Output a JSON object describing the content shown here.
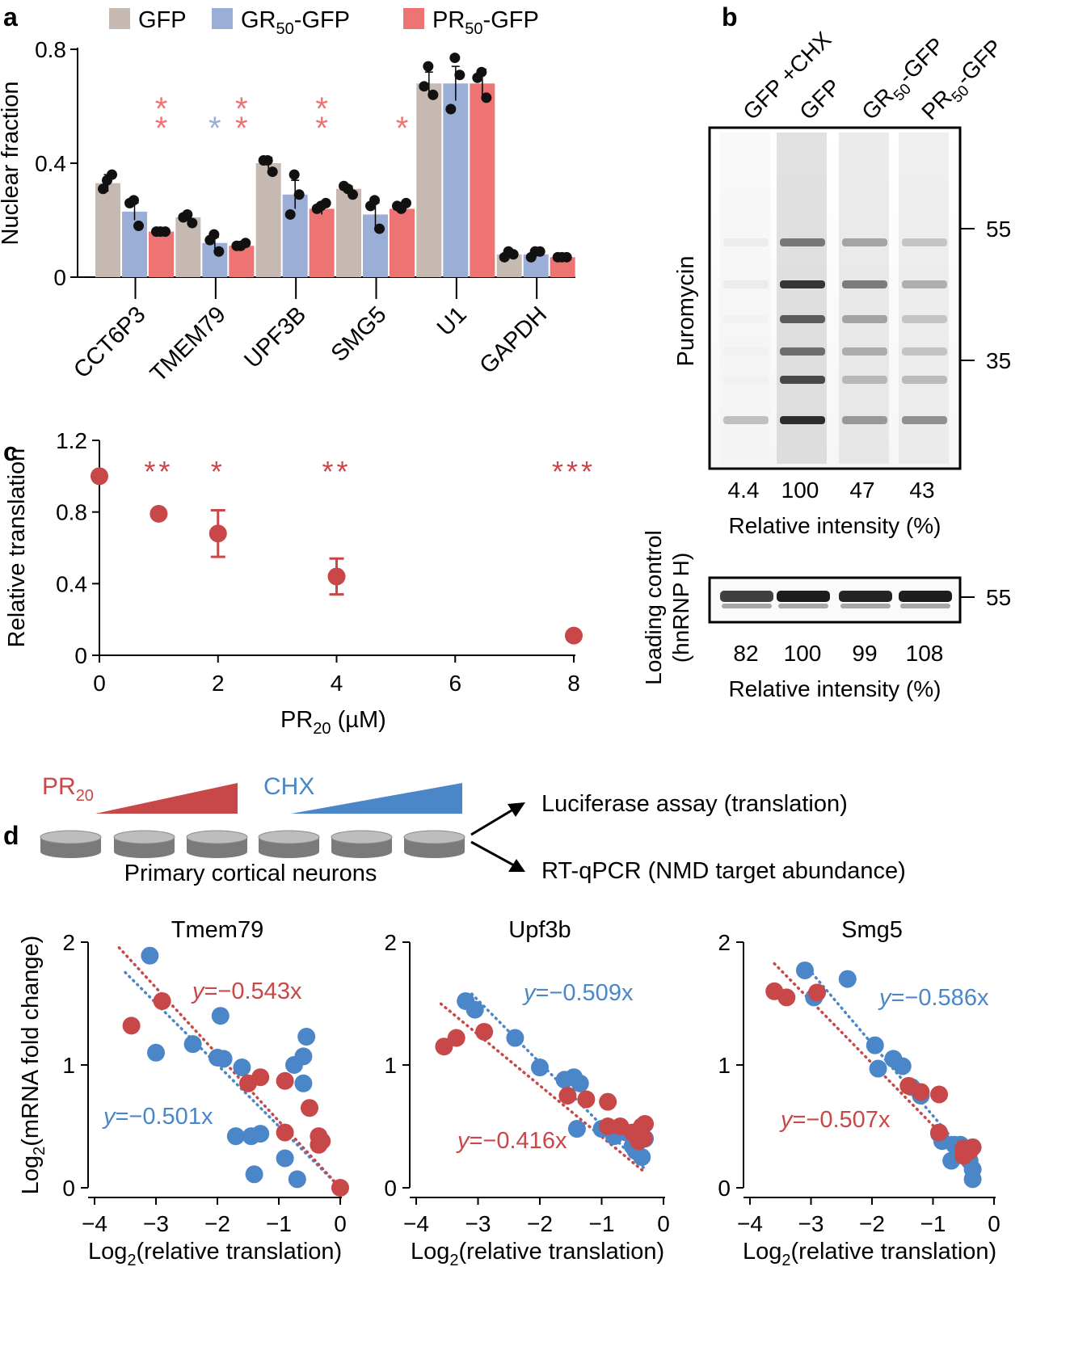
{
  "panel_labels": {
    "a": "a",
    "b": "b",
    "c": "c",
    "d": "d"
  },
  "colors": {
    "gfp": "#c5b9b2",
    "gr": "#9baed6",
    "pr": "#ee7373",
    "pr_dark": "#c84748",
    "cx_blue": "#4a86c8",
    "dot": "#111111"
  },
  "chart_data": [
    {
      "id": "a",
      "type": "bar",
      "ylabel": "Nuclear fraction",
      "ylim": [
        0,
        0.8
      ],
      "yticks": [
        "0",
        "0.4",
        "0.8"
      ],
      "categories": [
        "CCT6P3",
        "TMEM79",
        "UPF3B",
        "SMG5",
        "U1",
        "GAPDH"
      ],
      "legend": [
        {
          "name": "GFP",
          "sub": "",
          "suffix": ""
        },
        {
          "name": "GR",
          "sub": "50",
          "suffix": "-GFP"
        },
        {
          "name": "PR",
          "sub": "50",
          "suffix": "-GFP"
        }
      ],
      "series": [
        {
          "name": "GFP",
          "values": [
            0.33,
            0.21,
            0.4,
            0.31,
            0.68,
            0.08
          ],
          "points": [
            [
              0.31,
              0.36,
              0.34
            ],
            [
              0.21,
              0.19,
              0.22
            ],
            [
              0.41,
              0.37,
              0.41
            ],
            [
              0.32,
              0.29,
              0.31
            ],
            [
              0.67,
              0.64,
              0.74
            ],
            [
              0.07,
              0.08,
              0.09
            ]
          ],
          "err": [
            0.03,
            0.01,
            0.02,
            0.01,
            0.04,
            0.005
          ]
        },
        {
          "name": "GR50-GFP",
          "values": [
            0.23,
            0.12,
            0.29,
            0.22,
            0.68,
            0.08
          ],
          "points": [
            [
              0.26,
              0.18,
              0.27
            ],
            [
              0.13,
              0.09,
              0.15
            ],
            [
              0.22,
              0.29,
              0.36
            ],
            [
              0.25,
              0.17,
              0.27
            ],
            [
              0.59,
              0.71,
              0.77
            ],
            [
              0.07,
              0.09,
              0.09
            ]
          ],
          "err": [
            0.03,
            0.02,
            0.05,
            0.04,
            0.06,
            0.01
          ]
        },
        {
          "name": "PR50-GFP",
          "values": [
            0.16,
            0.11,
            0.24,
            0.24,
            0.68,
            0.07
          ],
          "points": [
            [
              0.16,
              0.16,
              0.16
            ],
            [
              0.11,
              0.12,
              0.11
            ],
            [
              0.24,
              0.26,
              0.25
            ],
            [
              0.25,
              0.26,
              0.24
            ],
            [
              0.7,
              0.63,
              0.72
            ],
            [
              0.07,
              0.07,
              0.07
            ]
          ],
          "err": [
            0.005,
            0.005,
            0.02,
            0.01,
            0.05,
            0.005
          ]
        }
      ],
      "significance": [
        {
          "category": 0,
          "series": 2,
          "text": "**"
        },
        {
          "category": 1,
          "series": 1,
          "text": "*"
        },
        {
          "category": 1,
          "series": 2,
          "text": "**"
        },
        {
          "category": 2,
          "series": 2,
          "text": "**"
        },
        {
          "category": 3,
          "series": 2,
          "text": "*"
        }
      ]
    },
    {
      "id": "c",
      "type": "scatter",
      "ylabel": "Relative translation",
      "xlabel_main": "PR",
      "xlabel_sub": "20",
      "xlabel_tail": " (µM)",
      "xlim": [
        0,
        8
      ],
      "ylim": [
        0,
        1.2
      ],
      "xticks": [
        "0",
        "2",
        "4",
        "6",
        "8"
      ],
      "yticks": [
        "0",
        "0.4",
        "0.8",
        "1.2"
      ],
      "points": [
        {
          "x": 0,
          "y": 1.0,
          "err": 0
        },
        {
          "x": 1,
          "y": 0.79,
          "err": 0
        },
        {
          "x": 2,
          "y": 0.68,
          "err": 0.13
        },
        {
          "x": 4,
          "y": 0.44,
          "err": 0.1
        },
        {
          "x": 8,
          "y": 0.11,
          "err": 0
        }
      ],
      "significance": [
        {
          "x": 1,
          "text": "**"
        },
        {
          "x": 2,
          "text": "*"
        },
        {
          "x": 4,
          "text": "**"
        },
        {
          "x": 8,
          "text": "***"
        }
      ]
    },
    {
      "id": "d1",
      "type": "scatter",
      "title": "Tmem79",
      "xlim": [
        -4,
        0
      ],
      "ylim": [
        0,
        2
      ],
      "xticks": [
        "−4",
        "−3",
        "−2",
        "−1",
        "0"
      ],
      "yticks": [
        "0",
        "1",
        "2"
      ],
      "xlabel_main": "Log",
      "xlabel_sub": "2",
      "xlabel_tail": "(relative translation)",
      "ylabel_main": "Log",
      "ylabel_sub": "2",
      "ylabel_tail": "(mRNA fold change)",
      "series": [
        {
          "name": "CHX",
          "slope": -0.501,
          "fit_x": [
            -3.5,
            0
          ],
          "equation_var": "y",
          "equation_rest": "=−0.501x",
          "points": [
            [
              -3.1,
              1.89
            ],
            [
              -3.0,
              1.1
            ],
            [
              -2.4,
              1.17
            ],
            [
              -2.0,
              1.06
            ],
            [
              -1.95,
              1.4
            ],
            [
              -1.7,
              0.42
            ],
            [
              -1.45,
              0.42
            ],
            [
              -1.4,
              0.11
            ],
            [
              -0.9,
              0.24
            ],
            [
              -0.75,
              1.0
            ],
            [
              -0.7,
              0.07
            ],
            [
              -0.6,
              1.07
            ],
            [
              -0.55,
              1.23
            ],
            [
              -0.6,
              0.85
            ],
            [
              -1.6,
              0.98
            ],
            [
              -1.9,
              1.05
            ],
            [
              -1.3,
              0.44
            ]
          ]
        },
        {
          "name": "PR20",
          "slope": -0.543,
          "fit_x": [
            -3.6,
            0
          ],
          "equation_var": "y",
          "equation_rest": "=−0.543x",
          "points": [
            [
              -3.4,
              1.32
            ],
            [
              -2.9,
              1.52
            ],
            [
              -1.5,
              0.85
            ],
            [
              -1.3,
              0.9
            ],
            [
              -0.9,
              0.87
            ],
            [
              -0.9,
              0.45
            ],
            [
              -0.5,
              0.65
            ],
            [
              -0.35,
              0.42
            ],
            [
              -0.35,
              0.35
            ],
            [
              -0.3,
              0.38
            ],
            [
              0,
              0
            ]
          ]
        }
      ]
    },
    {
      "id": "d2",
      "type": "scatter",
      "title": "Upf3b",
      "xlim": [
        -4,
        0
      ],
      "ylim": [
        0,
        2
      ],
      "xticks": [
        "−4",
        "−3",
        "−2",
        "−1",
        "0"
      ],
      "yticks": [
        "0",
        "1",
        "2"
      ],
      "xlabel_main": "Log",
      "xlabel_sub": "2",
      "xlabel_tail": "(relative translation)",
      "series": [
        {
          "name": "CHX",
          "slope": -0.509,
          "fit_x": [
            -3.1,
            -0.3
          ],
          "equation_var": "y",
          "equation_rest": "=−0.509x",
          "points": [
            [
              -3.2,
              1.52
            ],
            [
              -3.05,
              1.45
            ],
            [
              -2.4,
              1.22
            ],
            [
              -2.0,
              0.98
            ],
            [
              -1.6,
              0.88
            ],
            [
              -1.45,
              0.9
            ],
            [
              -1.35,
              0.85
            ],
            [
              -1.4,
              0.48
            ],
            [
              -1.0,
              0.48
            ],
            [
              -0.8,
              0.42
            ],
            [
              -0.6,
              0.45
            ],
            [
              -0.5,
              0.34
            ],
            [
              -0.45,
              0.3
            ],
            [
              -0.35,
              0.25
            ],
            [
              -0.3,
              0.4
            ]
          ]
        },
        {
          "name": "PR20",
          "slope": -0.416,
          "fit_x": [
            -3.6,
            -0.3
          ],
          "equation_var": "y",
          "equation_rest": "=−0.416x",
          "points": [
            [
              -3.55,
              1.15
            ],
            [
              -3.35,
              1.22
            ],
            [
              -2.9,
              1.27
            ],
            [
              -1.55,
              0.75
            ],
            [
              -1.25,
              0.72
            ],
            [
              -0.9,
              0.7
            ],
            [
              -0.9,
              0.5
            ],
            [
              -0.7,
              0.5
            ],
            [
              -0.5,
              0.45
            ],
            [
              -0.35,
              0.5
            ],
            [
              -0.3,
              0.52
            ],
            [
              -0.32,
              0.4
            ],
            [
              -0.4,
              0.38
            ]
          ]
        }
      ]
    },
    {
      "id": "d3",
      "type": "scatter",
      "title": "Smg5",
      "xlim": [
        -4,
        0
      ],
      "ylim": [
        0,
        2
      ],
      "xticks": [
        "−4",
        "−3",
        "−2",
        "−1",
        "0"
      ],
      "yticks": [
        "0",
        "1",
        "2"
      ],
      "xlabel_main": "Log",
      "xlabel_sub": "2",
      "xlabel_tail": "(relative translation)",
      "series": [
        {
          "name": "CHX",
          "slope": -0.586,
          "fit_x": [
            -3.1,
            -0.3
          ],
          "equation_var": "y",
          "equation_rest": "=−0.586x",
          "points": [
            [
              -3.1,
              1.77
            ],
            [
              -2.95,
              1.55
            ],
            [
              -2.4,
              1.7
            ],
            [
              -1.95,
              1.16
            ],
            [
              -1.9,
              0.97
            ],
            [
              -1.65,
              1.05
            ],
            [
              -1.5,
              0.99
            ],
            [
              -1.35,
              0.82
            ],
            [
              -1.2,
              0.75
            ],
            [
              -0.9,
              0.44
            ],
            [
              -0.85,
              0.38
            ],
            [
              -0.65,
              0.35
            ],
            [
              -0.55,
              0.35
            ],
            [
              -0.45,
              0.3
            ],
            [
              -0.4,
              0.22
            ],
            [
              -0.35,
              0.15
            ],
            [
              -0.35,
              0.07
            ],
            [
              -0.7,
              0.22
            ]
          ]
        },
        {
          "name": "PR20",
          "slope": -0.507,
          "fit_x": [
            -3.6,
            -0.3
          ],
          "equation_var": "y",
          "equation_rest": "=−0.507x",
          "points": [
            [
              -3.6,
              1.6
            ],
            [
              -3.4,
              1.55
            ],
            [
              -2.9,
              1.59
            ],
            [
              -1.4,
              0.83
            ],
            [
              -1.2,
              0.78
            ],
            [
              -0.9,
              0.76
            ],
            [
              -0.9,
              0.45
            ],
            [
              -0.5,
              0.32
            ],
            [
              -0.4,
              0.3
            ],
            [
              -0.35,
              0.33
            ],
            [
              -0.5,
              0.26
            ]
          ]
        }
      ]
    }
  ],
  "panel_b": {
    "lanes": [
      {
        "main": "GFP +CHX",
        "sub": "",
        "tail": ""
      },
      {
        "main": "GFP",
        "sub": "",
        "tail": ""
      },
      {
        "main": "GR",
        "sub": "50",
        "tail": "-GFP"
      },
      {
        "main": "PR",
        "sub": "50",
        "tail": "-GFP"
      }
    ],
    "blot_label": "Puromycin",
    "markers": [
      "55",
      "35"
    ],
    "intensity_values": [
      "4.4",
      "100",
      "47",
      "43"
    ],
    "intensity_label": "Relative intensity (%)",
    "loading_label_1": "Loading control",
    "loading_label_2": "(hnRNP H)",
    "loading_marker": "55",
    "loading_values": [
      "82",
      "100",
      "99",
      "108"
    ],
    "loading_intensity_label": "Relative intensity (%)"
  },
  "panel_d_schematic": {
    "pr_label_main": "PR",
    "pr_label_sub": "20",
    "chx_label": "CHX",
    "cells_label": "Primary cortical neurons",
    "outcome_1": "Luciferase assay (translation)",
    "outcome_2": "RT-qPCR (NMD target abundance)"
  }
}
